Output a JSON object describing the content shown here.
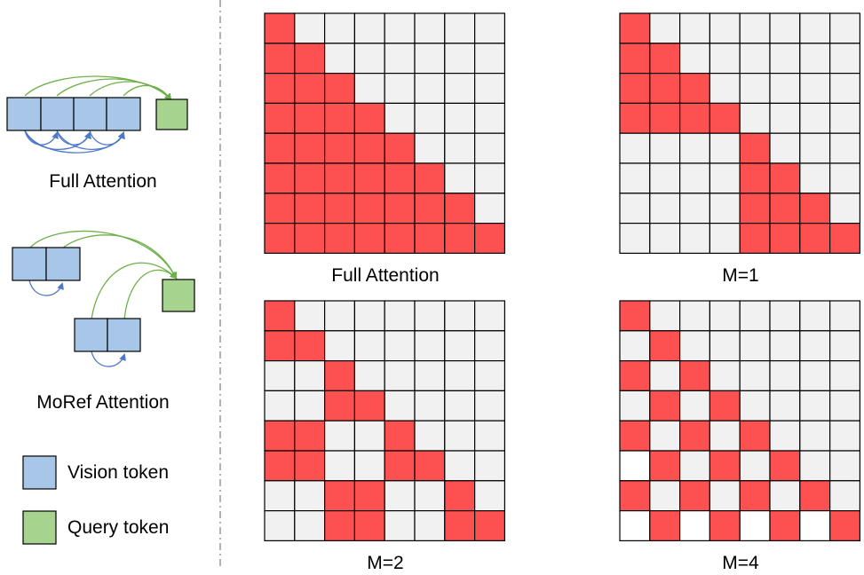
{
  "colors": {
    "attended": "#fd5050",
    "masked": "#f1f1f1",
    "blank": "#ffffff",
    "vision": "#a8c7e8",
    "query": "#a6d38d",
    "arrow_green": "#6fb04a",
    "arrow_blue": "#4d79c7"
  },
  "legend": {
    "full_attention_label": "Full Attention",
    "moref_attention_label": "MoRef Attention",
    "vision_token_label": "Vision token",
    "query_token_label": "Query token"
  },
  "matrices": [
    {
      "label": "Full Attention",
      "rows": [
        "10000000",
        "11000000",
        "11100000",
        "11110000",
        "11111000",
        "11111100",
        "11111110",
        "11111111"
      ]
    },
    {
      "label": "M=1",
      "rows": [
        "10000000",
        "11000000",
        "11100000",
        "11110000",
        "00001000",
        "00001100",
        "00001110",
        "00001111"
      ]
    },
    {
      "label": "M=2",
      "rows": [
        "10000000",
        "11000000",
        "00100000",
        "00110000",
        "11001000",
        "11001100",
        "00110010",
        "00110011"
      ]
    },
    {
      "label": "M=4",
      "rows": [
        "10000000",
        "01000000",
        "10100000",
        "01010000",
        "10101000",
        "w1010100",
        "10101010",
        "w1w1w1w1"
      ]
    }
  ]
}
